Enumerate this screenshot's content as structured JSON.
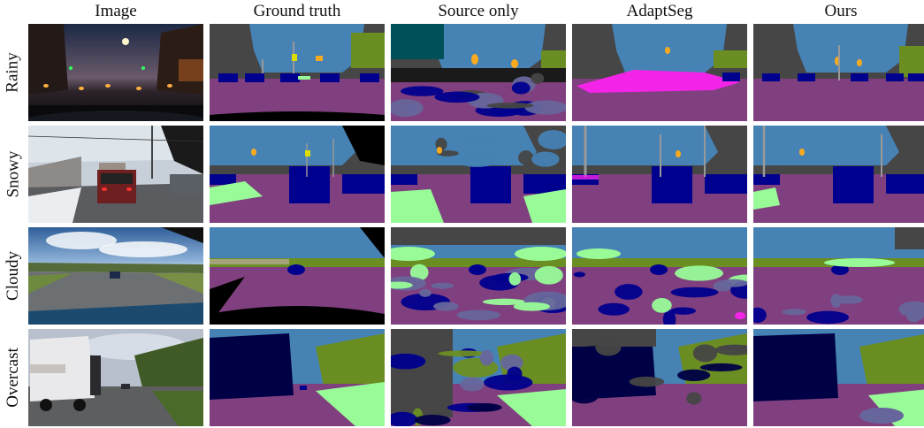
{
  "columns": [
    "Image",
    "Ground truth",
    "Source only",
    "AdaptSeg",
    "Ours"
  ],
  "rows": [
    "Rainy",
    "Snowy",
    "Cloudy",
    "Overcast"
  ],
  "palette": {
    "sky": "#4682B4",
    "building": "#464646",
    "vegetation": "#6B8E23",
    "road": "#80407F",
    "car": "#00008E",
    "sidewalk": "#F423E8",
    "terrain": "#98FB98",
    "pole": "#999999",
    "traffic_sign": "#DCDC00",
    "traffic_light": "#FAAA1E",
    "truck": "#000046",
    "wall": "#66669C",
    "void": "#000000"
  }
}
